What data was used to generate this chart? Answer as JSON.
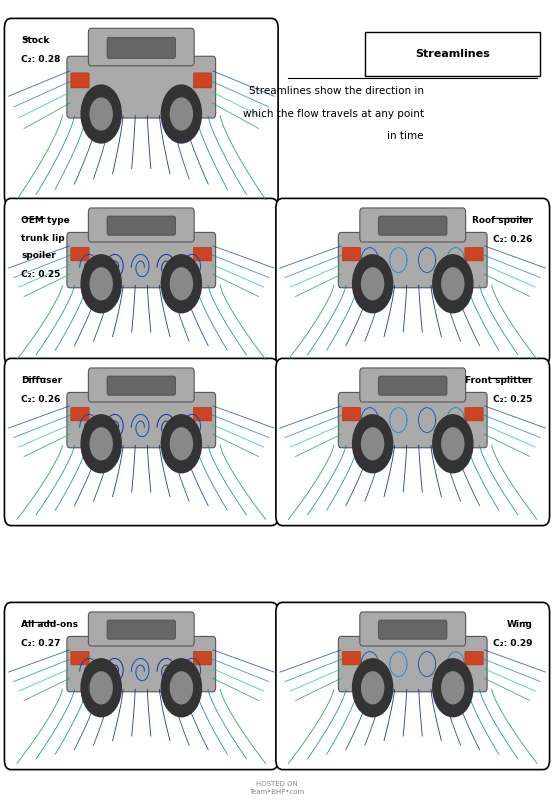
{
  "title": "Streamlines",
  "description_lines": [
    "Streamlines show the direction in",
    "which the flow travels at any point",
    "in time"
  ],
  "bg_color": "#ffffff",
  "box_edge_color": "#000000",
  "panels": [
    {
      "label": "Stock",
      "cd": "C₂: 0.28",
      "row": 0,
      "col": 0,
      "label_underline": true,
      "cd_subscript": true
    },
    {
      "label": "OEM type\ntrunk lip\nspoiler",
      "cd": "C₂: 0.25",
      "row": 1,
      "col": 0,
      "label_underline": true,
      "cd_subscript": true
    },
    {
      "label": "Roof spoiler",
      "cd": "C₂: 0.26",
      "row": 1,
      "col": 1,
      "label_underline": true,
      "cd_subscript": true
    },
    {
      "label": "Diffuser",
      "cd": "C₂: 0.26",
      "row": 2,
      "col": 0,
      "label_underline": true,
      "cd_subscript": true
    },
    {
      "label": "Front splitter",
      "cd": "C₂: 0.25",
      "row": 2,
      "col": 1,
      "label_underline": true,
      "cd_subscript": true
    },
    {
      "label": "All add-ons",
      "cd": "C₂: 0.27",
      "row": 3,
      "col": 0,
      "label_underline": true,
      "cd_subscript": true
    },
    {
      "label": "Wing",
      "cd": "C₂: 0.29",
      "row": 3,
      "col": 1,
      "label_underline": true,
      "cd_subscript": true
    }
  ],
  "footer_text": "HOSTED ON",
  "car_color": "#a0a0a0",
  "streamline_colors": [
    "#00aa44",
    "#00ccaa",
    "#0088cc",
    "#0044aa",
    "#002299"
  ],
  "panel_positions": {
    "row0_col0": [
      0.02,
      0.8,
      0.44,
      0.18
    ],
    "row1_col0": [
      0.02,
      0.58,
      0.44,
      0.2
    ],
    "row1_col1": [
      0.52,
      0.58,
      0.44,
      0.2
    ],
    "row2_col0": [
      0.02,
      0.36,
      0.44,
      0.2
    ],
    "row2_col1": [
      0.52,
      0.36,
      0.44,
      0.2
    ],
    "row3_col0": [
      0.02,
      0.14,
      0.44,
      0.2
    ],
    "row3_col1": [
      0.52,
      0.14,
      0.44,
      0.2
    ]
  }
}
